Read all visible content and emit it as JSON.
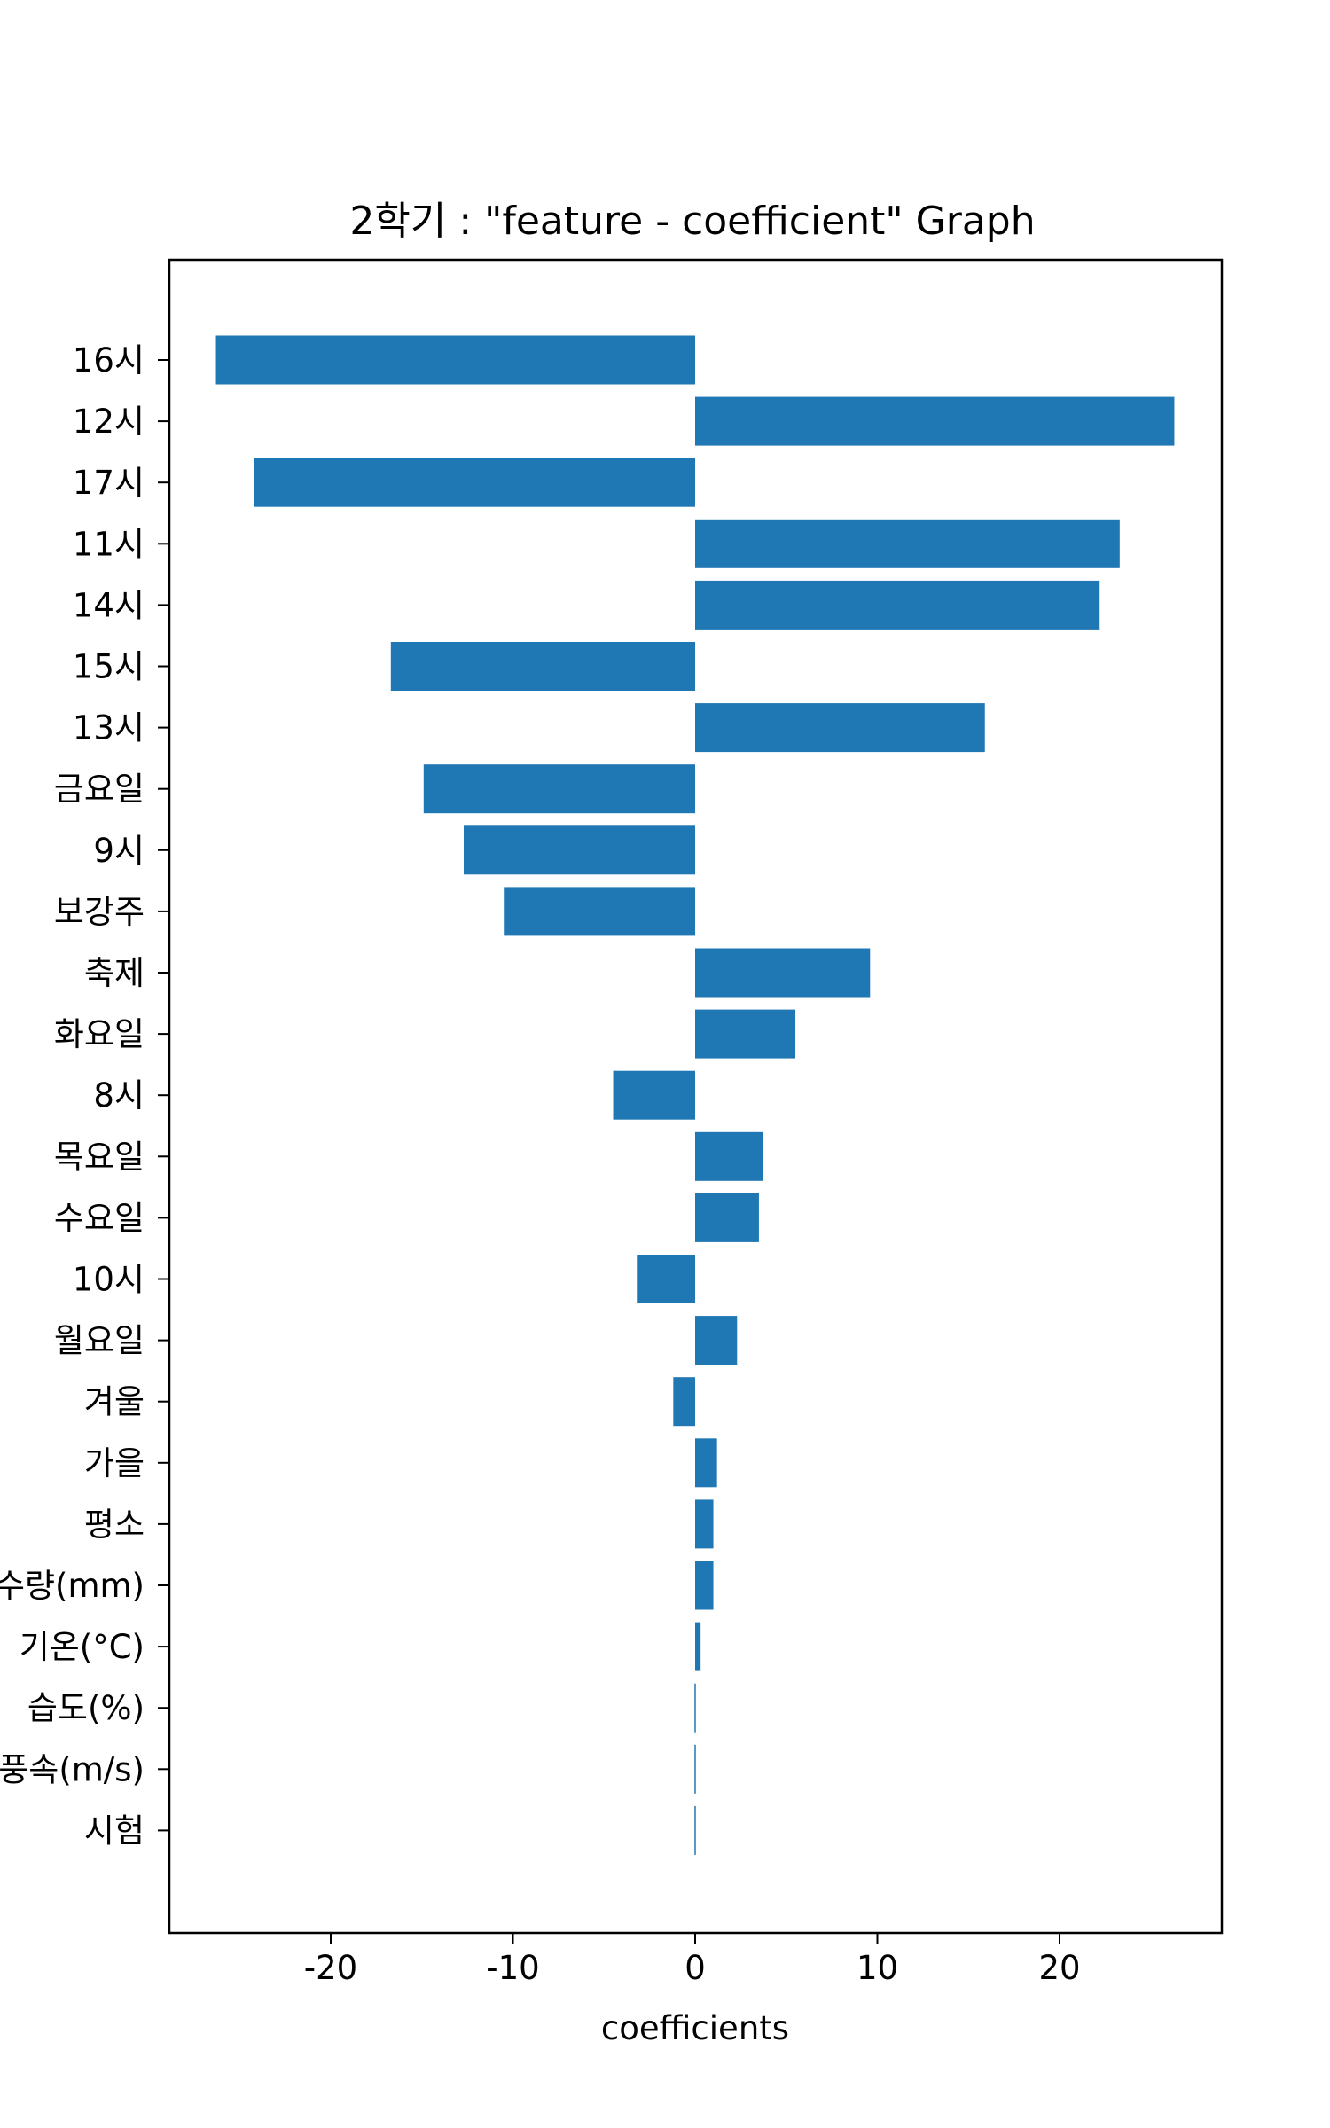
{
  "chart_data": {
    "type": "bar",
    "orientation": "horizontal",
    "title": "2학기 : \"feature - coefficient\" Graph",
    "xlabel": "coefficients",
    "ylabel": "",
    "xlim": [
      -28.5,
      29
    ],
    "xticks": [
      -20,
      -10,
      0,
      10,
      20
    ],
    "xtick_labels": [
      "-20",
      "-10",
      "0",
      "10",
      "20"
    ],
    "grid": false,
    "bar_color": "#1f77b4",
    "categories": [
      "16시",
      "12시",
      "17시",
      "11시",
      "14시",
      "15시",
      "13시",
      "금요일",
      "9시",
      "보강주",
      "축제",
      "화요일",
      "8시",
      "목요일",
      "수요일",
      "10시",
      "월요일",
      "겨울",
      "가을",
      "평소",
      "강수량(mm)",
      "기온(°C)",
      "습도(%)",
      "풍속(m/s)",
      "시험"
    ],
    "values": [
      -26.3,
      26.3,
      -24.2,
      23.3,
      22.2,
      -16.7,
      15.9,
      -14.9,
      -12.7,
      -10.5,
      9.6,
      5.5,
      -4.5,
      3.7,
      3.5,
      -3.2,
      2.3,
      -1.2,
      1.2,
      1.0,
      1.0,
      0.3,
      -0.05,
      -0.05,
      -0.05
    ]
  }
}
